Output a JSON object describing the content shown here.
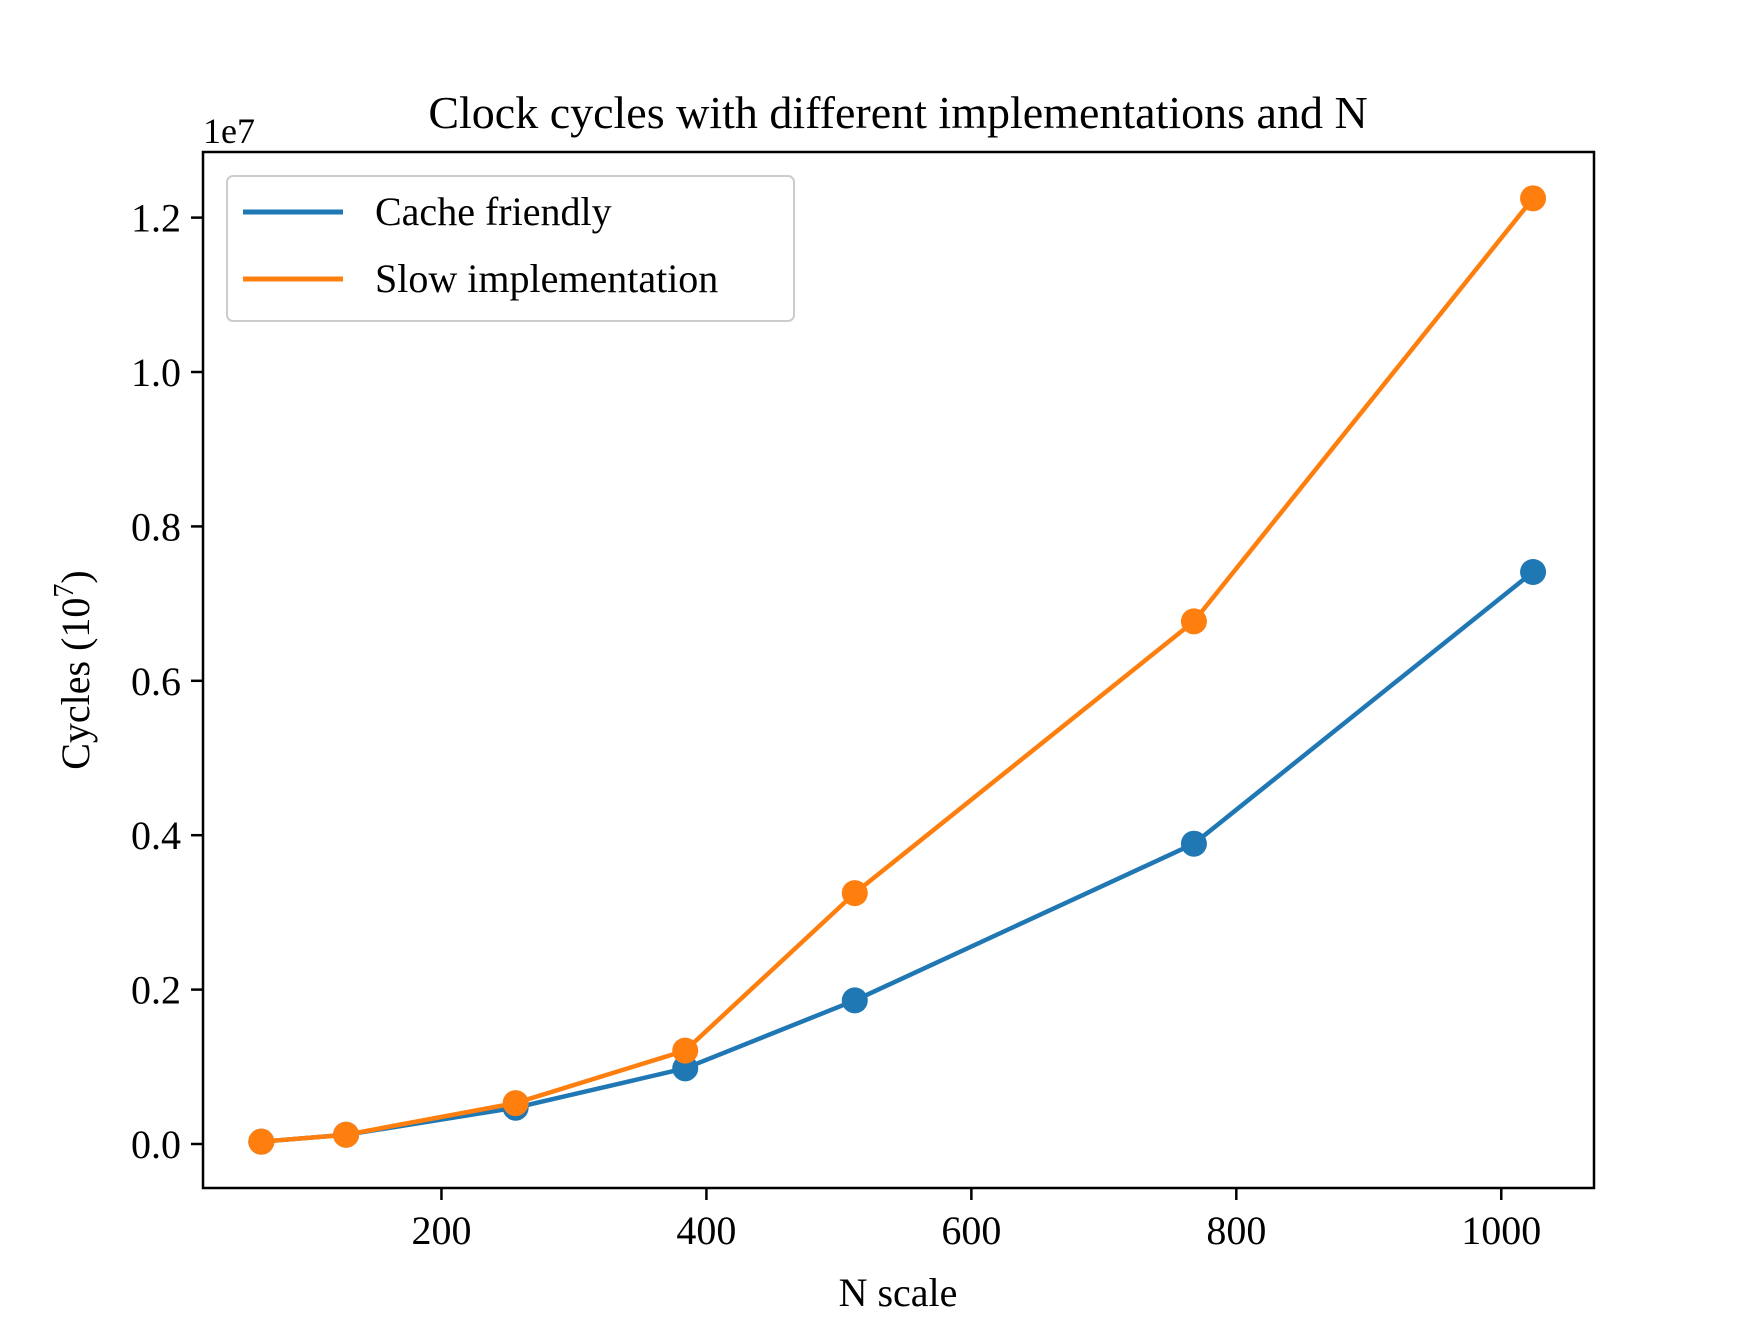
{
  "chart_data": {
    "type": "line",
    "title": "Clock cycles with different implementations and N",
    "xlabel": "N scale",
    "ylabel": "Cycles (10",
    "ylabel_sup": "7",
    "ylabel_close": ")",
    "offset_text": "1e7",
    "xlim": [
      20,
      1070
    ],
    "ylim": [
      -0.057,
      1.285
    ],
    "x_ticks": [
      200,
      400,
      600,
      800,
      1000
    ],
    "x_tick_labels": [
      "200",
      "400",
      "600",
      "800",
      "1000"
    ],
    "y_ticks": [
      0.0,
      0.2,
      0.4,
      0.6,
      0.8,
      1.0,
      1.2
    ],
    "y_tick_labels": [
      "0.0",
      "0.2",
      "0.4",
      "0.6",
      "0.8",
      "1.0",
      "1.2"
    ],
    "grid": false,
    "legend_position": "top-left",
    "x": [
      64,
      128,
      256,
      384,
      512,
      768,
      1024
    ],
    "series": [
      {
        "name": "Cache friendly",
        "color": "#1f77b4",
        "values": [
          0.003,
          0.012,
          0.047,
          0.098,
          0.186,
          0.389,
          0.741
        ]
      },
      {
        "name": "Slow implementation",
        "color": "#ff7f0e",
        "values": [
          0.003,
          0.012,
          0.053,
          0.121,
          0.325,
          0.677,
          1.225
        ]
      }
    ]
  }
}
